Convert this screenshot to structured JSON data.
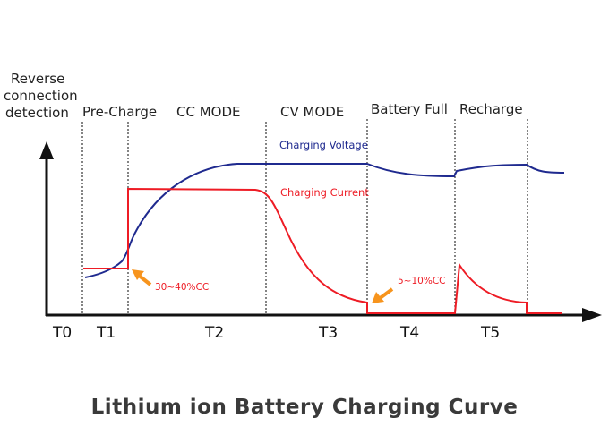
{
  "header": {
    "reverse_lines": [
      "Reverse",
      "connection",
      "detection"
    ],
    "phases": [
      "Pre-Charge",
      "CC MODE",
      "CV MODE",
      "Battery Full",
      "Recharge"
    ]
  },
  "time_labels": [
    "T0",
    "T1",
    "T2",
    "T3",
    "T4",
    "T5"
  ],
  "series": {
    "voltage": {
      "label": "Charging Voltage",
      "color": "#1f2a8f"
    },
    "current": {
      "label": "Charging Current",
      "color": "#ee1c25"
    }
  },
  "annotations": {
    "precharge_current": "30~40%CC",
    "termination_current": "5~10%CC",
    "arrow_color": "#f7941d"
  },
  "title": "Lithium ion Battery Charging Curve"
}
